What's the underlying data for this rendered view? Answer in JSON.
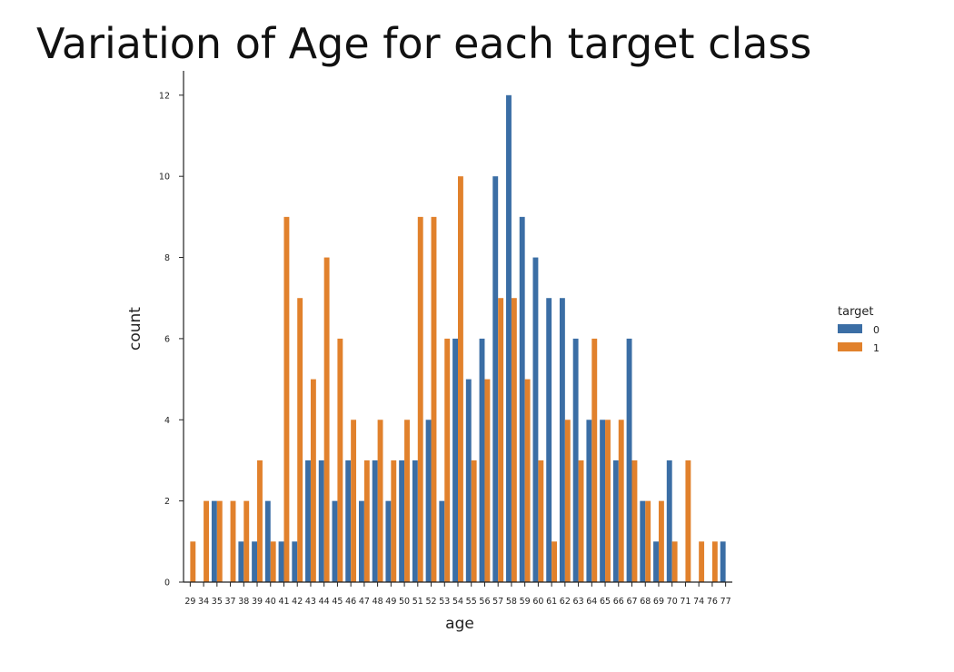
{
  "chart_data": {
    "type": "bar",
    "title": "Variation of Age for each target class",
    "xlabel": "age",
    "ylabel": "count",
    "ylim": [
      0,
      12.6
    ],
    "yticks": [
      "0",
      "2",
      "4",
      "6",
      "8",
      "10",
      "12"
    ],
    "legend_title": "target",
    "legend_position": "right",
    "categories": [
      "29",
      "34",
      "35",
      "37",
      "38",
      "39",
      "40",
      "41",
      "42",
      "43",
      "44",
      "45",
      "46",
      "47",
      "48",
      "49",
      "50",
      "51",
      "52",
      "53",
      "54",
      "55",
      "56",
      "57",
      "58",
      "59",
      "60",
      "61",
      "62",
      "63",
      "64",
      "65",
      "66",
      "67",
      "68",
      "69",
      "70",
      "71",
      "74",
      "76",
      "77"
    ],
    "series": [
      {
        "name": "0",
        "color": "#3b6ea5",
        "values": [
          0,
          0,
          2,
          0,
          1,
          1,
          2,
          1,
          1,
          3,
          3,
          2,
          3,
          2,
          3,
          2,
          3,
          3,
          4,
          2,
          6,
          5,
          6,
          10,
          12,
          9,
          8,
          7,
          7,
          6,
          4,
          4,
          3,
          6,
          2,
          1,
          3,
          0,
          0,
          0,
          1
        ]
      },
      {
        "name": "1",
        "color": "#e1812c",
        "values": [
          1,
          2,
          2,
          2,
          2,
          3,
          1,
          9,
          7,
          5,
          8,
          6,
          4,
          3,
          4,
          3,
          4,
          9,
          9,
          6,
          10,
          3,
          5,
          7,
          7,
          5,
          3,
          1,
          4,
          3,
          6,
          4,
          4,
          3,
          2,
          2,
          1,
          3,
          1,
          1,
          0
        ]
      }
    ]
  }
}
